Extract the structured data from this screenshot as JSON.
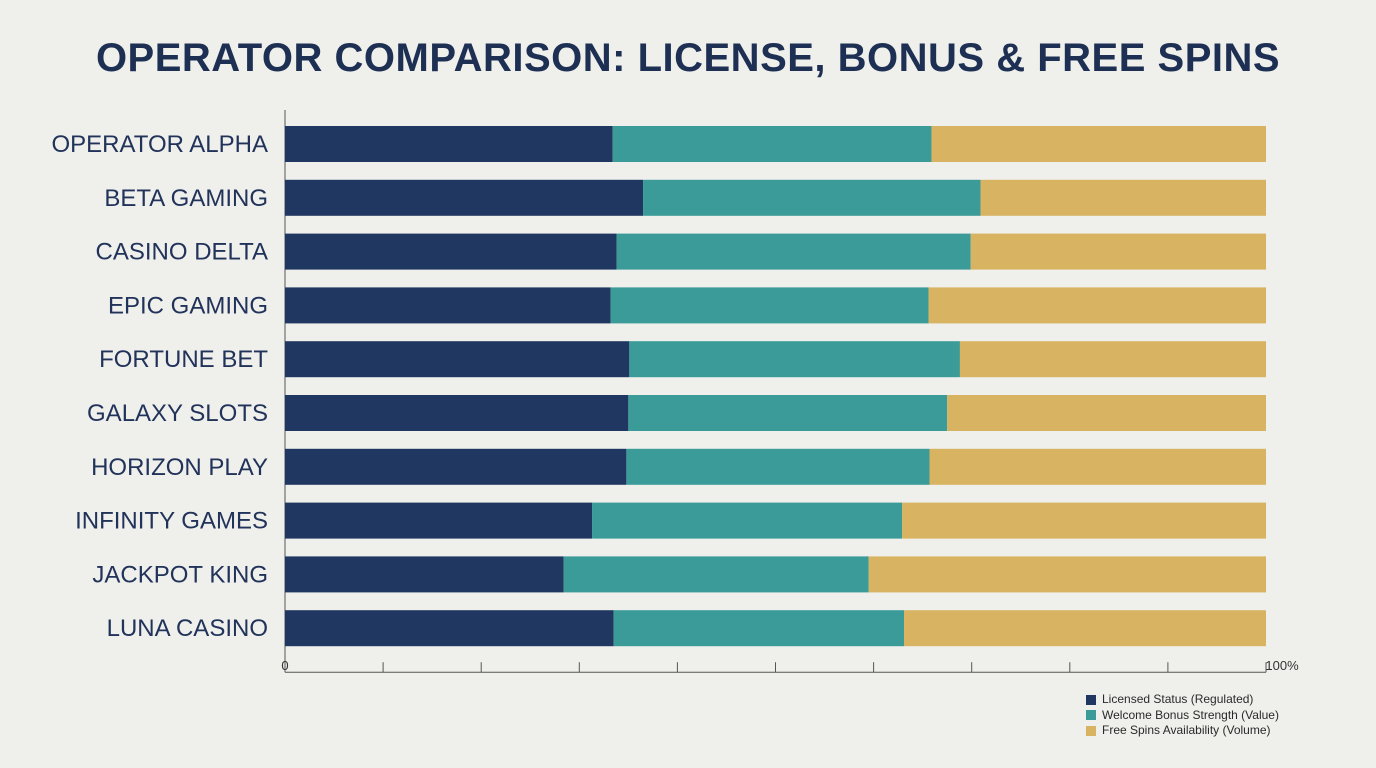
{
  "chart_data": {
    "type": "bar",
    "orientation": "horizontal",
    "stacked": true,
    "title": "OPERATOR COMPARISON: LICENSE, BONUS & FREE SPINS",
    "xlabel": "",
    "ylabel": "",
    "xlim": [
      0,
      100
    ],
    "x_tick_labels": [
      "0",
      "100%"
    ],
    "grid": false,
    "legend_position": "bottom-right",
    "categories": [
      "OPERATOR ALPHA",
      "BETA GAMING",
      "CASINO DELTA",
      "EPIC GAMING",
      "FORTUNE BET",
      "GALAXY SLOTS",
      "HORIZON PLAY",
      "INFINITY GAMES",
      "JACKPOT KING",
      "LUNA CASINO"
    ],
    "series": [
      {
        "name": "Licensed Status (Regulated)",
        "color": "#203761",
        "values": [
          33.4,
          36.5,
          33.8,
          33.2,
          35.1,
          35.0,
          34.8,
          31.3,
          28.4,
          33.5
        ]
      },
      {
        "name": "Welcome Bonus Strength (Value)",
        "color": "#3a9b98",
        "values": [
          32.5,
          34.4,
          36.1,
          32.4,
          33.7,
          32.5,
          30.9,
          31.6,
          31.1,
          29.6
        ]
      },
      {
        "name": "Free Spins Availability (Volume)",
        "color": "#d8b462",
        "values": [
          34.1,
          29.1,
          30.1,
          34.4,
          31.2,
          32.5,
          34.3,
          37.1,
          40.5,
          36.9
        ]
      }
    ]
  }
}
